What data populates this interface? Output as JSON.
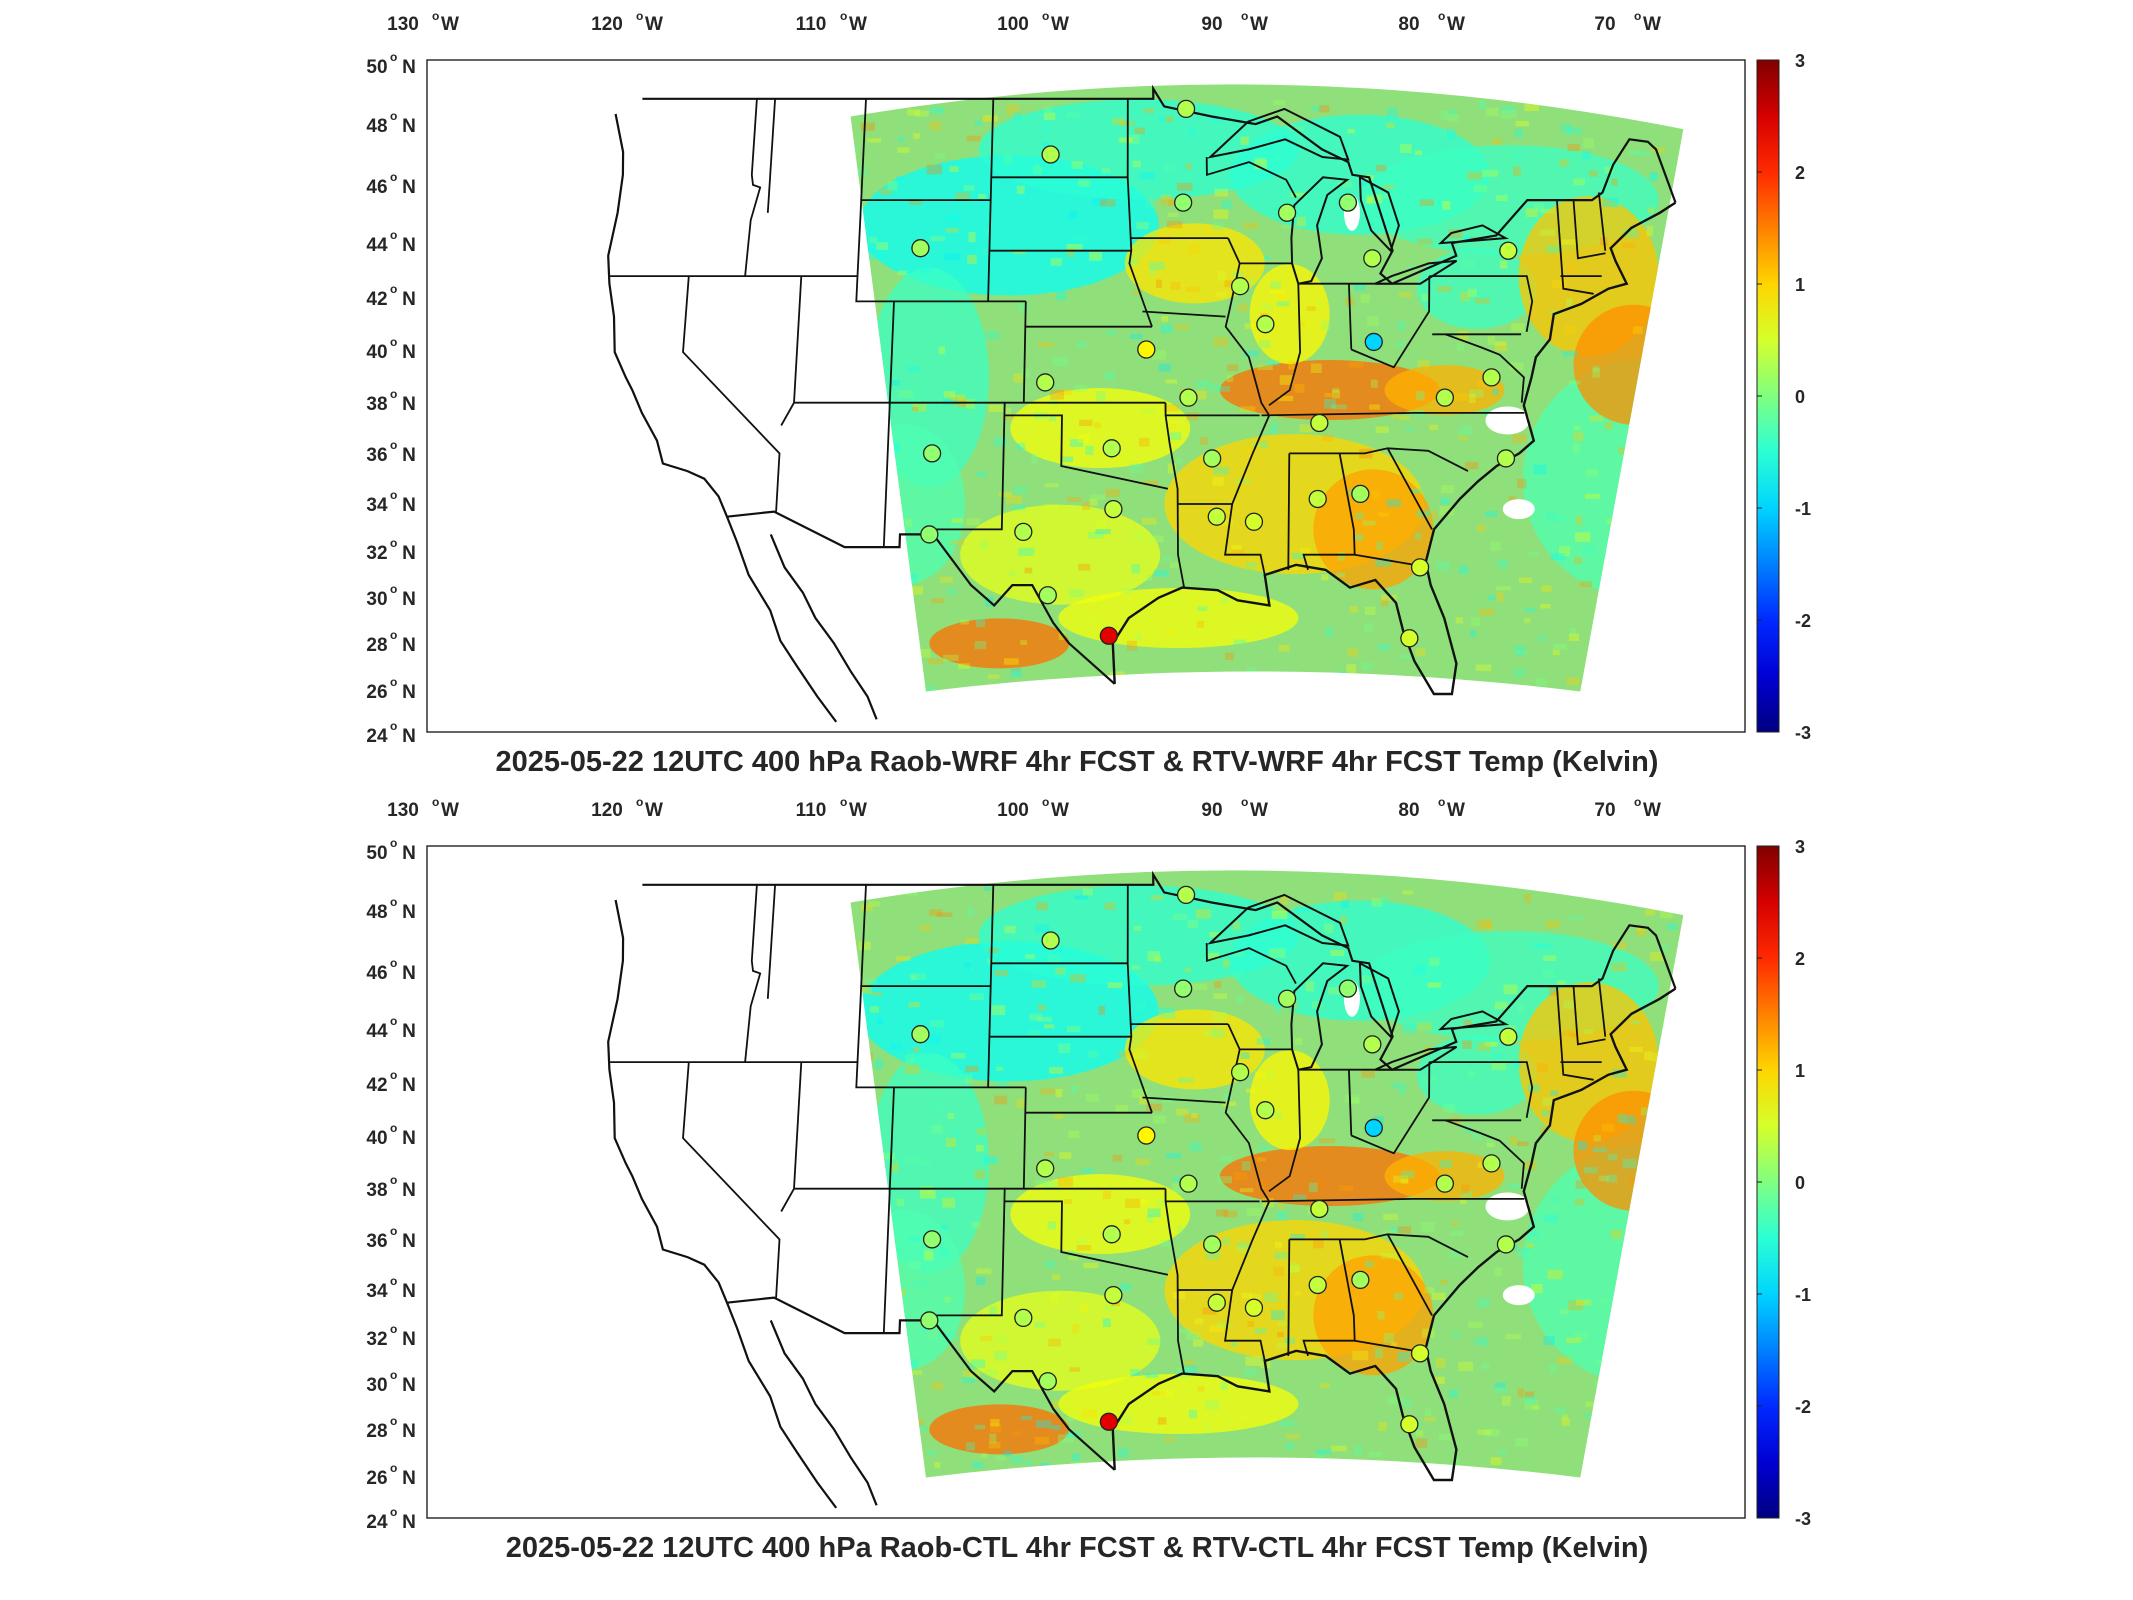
{
  "panels": [
    {
      "id": "top",
      "title": "2025-05-22 12UTC 400 hPa Raob-WRF 4hr FCST & RTV-WRF 4hr FCST Temp (Kelvin)"
    },
    {
      "id": "bottom",
      "title": "2025-05-22 12UTC 400 hPa Raob-CTL 4hr FCST & RTV-CTL 4hr FCST Temp (Kelvin)"
    }
  ],
  "lon_ticks": [
    {
      "deg": "130",
      "hem": "W"
    },
    {
      "deg": "120",
      "hem": "W"
    },
    {
      "deg": "110",
      "hem": "W"
    },
    {
      "deg": "100",
      "hem": "W"
    },
    {
      "deg": "90",
      "hem": "W"
    },
    {
      "deg": "80",
      "hem": "W"
    },
    {
      "deg": "70",
      "hem": "W"
    }
  ],
  "lat_ticks": [
    {
      "deg": "50",
      "hem": "N"
    },
    {
      "deg": "48",
      "hem": "N"
    },
    {
      "deg": "46",
      "hem": "N"
    },
    {
      "deg": "44",
      "hem": "N"
    },
    {
      "deg": "42",
      "hem": "N"
    },
    {
      "deg": "40",
      "hem": "N"
    },
    {
      "deg": "38",
      "hem": "N"
    },
    {
      "deg": "36",
      "hem": "N"
    },
    {
      "deg": "34",
      "hem": "N"
    },
    {
      "deg": "32",
      "hem": "N"
    },
    {
      "deg": "30",
      "hem": "N"
    },
    {
      "deg": "28",
      "hem": "N"
    },
    {
      "deg": "26",
      "hem": "N"
    },
    {
      "deg": "24",
      "hem": "N"
    }
  ],
  "colorbar": {
    "ticks": [
      "3",
      "2",
      "1",
      "0",
      "-1",
      "-2",
      "-3"
    ],
    "range": [
      -3,
      3
    ],
    "colormap": "jet"
  },
  "map": {
    "projection": "Lambert conformal, CONUS",
    "lon_range": [
      -130,
      -66
    ],
    "lat_range": [
      24,
      50
    ],
    "colors": {
      "field_background": "#a6e65c",
      "cold_anomaly": "#33ccee",
      "warm_anomaly": "#f0a020",
      "hot_anomaly": "#e85010",
      "boundary": "#111111"
    }
  },
  "raob_stations": [
    {
      "lon": -93.4,
      "lat": 48.6,
      "diff": 0.3
    },
    {
      "lon": -100.8,
      "lat": 46.8,
      "diff": 0.3
    },
    {
      "lon": -93.6,
      "lat": 44.9,
      "diff": 0.1
    },
    {
      "lon": -88.0,
      "lat": 44.5,
      "diff": 0.2
    },
    {
      "lon": -84.7,
      "lat": 44.9,
      "diff": 0.1
    },
    {
      "lon": -83.5,
      "lat": 42.7,
      "diff": 0.3
    },
    {
      "lon": -76.2,
      "lat": 43.0,
      "diff": 0.4
    },
    {
      "lon": -107.7,
      "lat": 43.1,
      "diff": 0.2
    },
    {
      "lon": -90.6,
      "lat": 41.6,
      "diff": 0.3
    },
    {
      "lon": -89.3,
      "lat": 40.1,
      "diff": 0.3
    },
    {
      "lon": -83.6,
      "lat": 39.4,
      "diff": -1.0
    },
    {
      "lon": -95.6,
      "lat": 39.1,
      "diff": 0.8
    },
    {
      "lon": -100.9,
      "lat": 37.8,
      "diff": 0.3
    },
    {
      "lon": -93.4,
      "lat": 37.2,
      "diff": 0.3
    },
    {
      "lon": -80.0,
      "lat": 37.2,
      "diff": 0.3
    },
    {
      "lon": -77.5,
      "lat": 38.0,
      "diff": 0.3
    },
    {
      "lon": -86.6,
      "lat": 36.2,
      "diff": 0.4
    },
    {
      "lon": -106.7,
      "lat": 35.0,
      "diff": 0.1
    },
    {
      "lon": -97.4,
      "lat": 35.2,
      "diff": 0.3
    },
    {
      "lon": -92.2,
      "lat": 34.8,
      "diff": 0.2
    },
    {
      "lon": -77.0,
      "lat": 34.8,
      "diff": 0.3
    },
    {
      "lon": -84.6,
      "lat": 33.4,
      "diff": 0.2
    },
    {
      "lon": -86.8,
      "lat": 33.2,
      "diff": 0.4
    },
    {
      "lon": -90.1,
      "lat": 32.3,
      "diff": 0.5
    },
    {
      "lon": -92.0,
      "lat": 32.5,
      "diff": 0.4
    },
    {
      "lon": -97.3,
      "lat": 32.8,
      "diff": 0.4
    },
    {
      "lon": -101.9,
      "lat": 31.9,
      "diff": 0.3
    },
    {
      "lon": -106.7,
      "lat": 31.8,
      "diff": 0.1
    },
    {
      "lon": -100.6,
      "lat": 29.4,
      "diff": 0.2
    },
    {
      "lon": -97.5,
      "lat": 27.8,
      "diff": 2.4
    },
    {
      "lon": -82.4,
      "lat": 27.7,
      "diff": 0.5
    },
    {
      "lon": -81.7,
      "lat": 30.5,
      "diff": 0.5
    }
  ]
}
